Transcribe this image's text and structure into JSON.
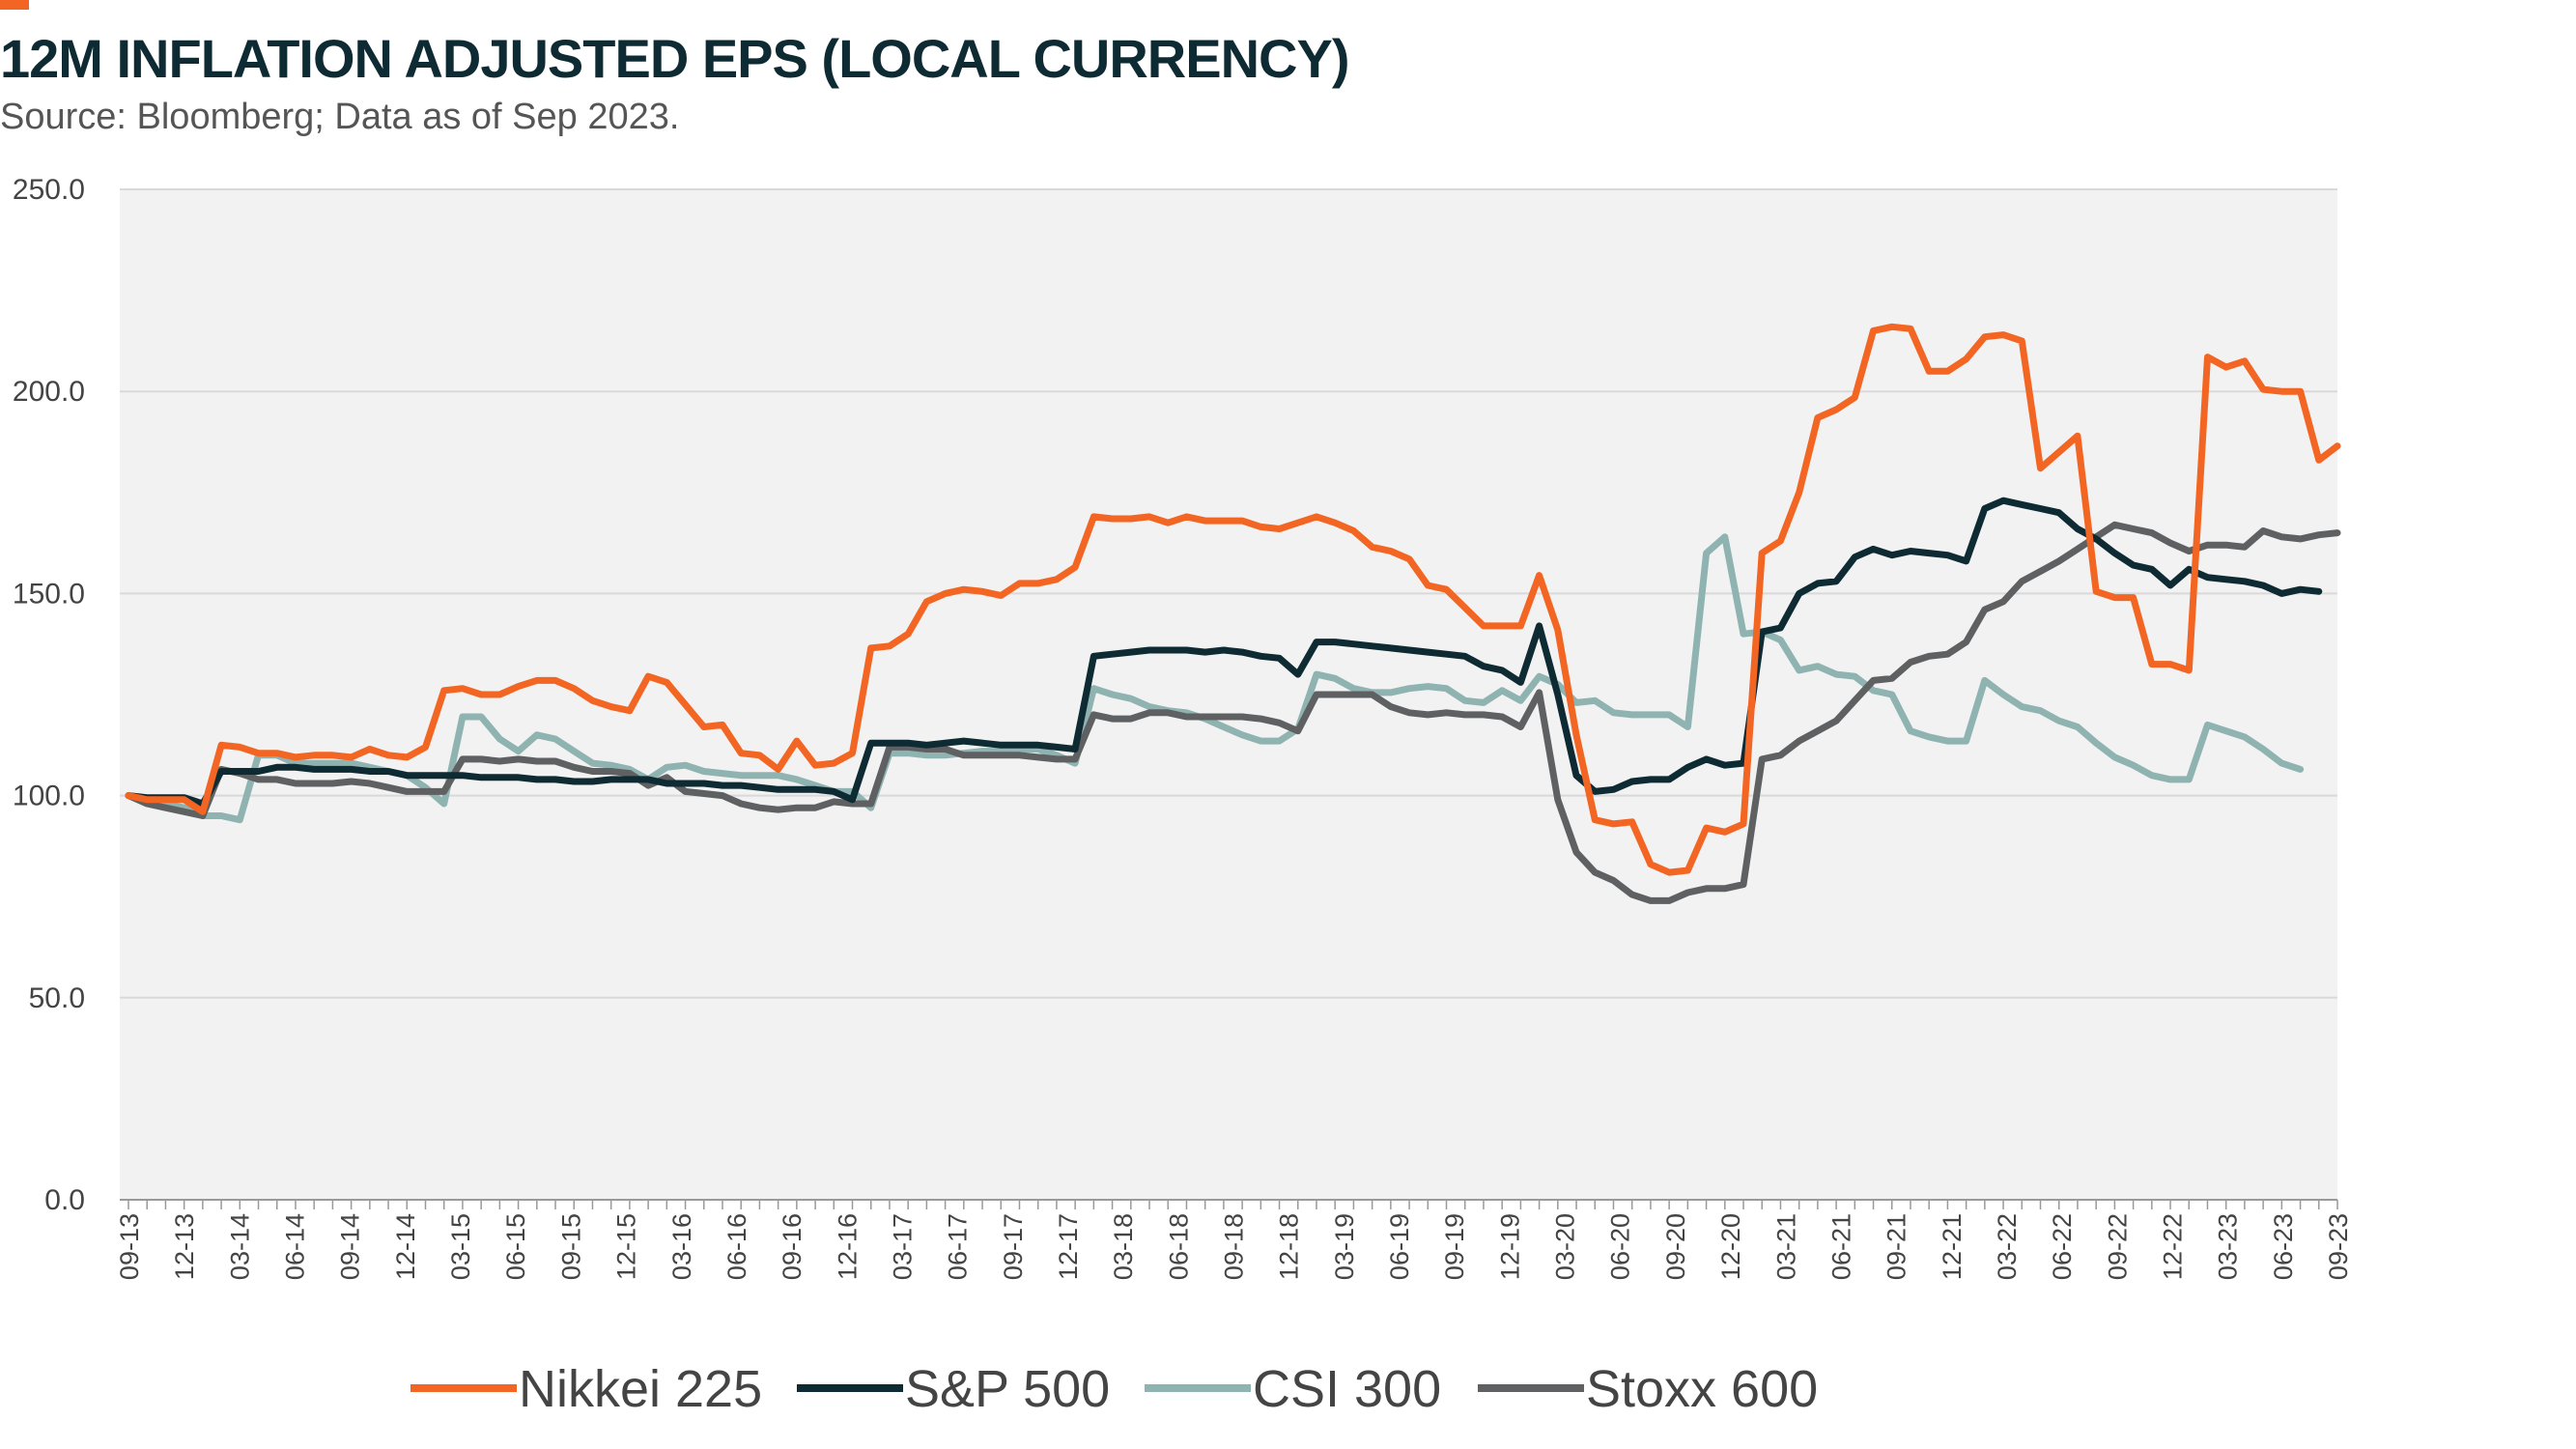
{
  "title": "12M INFLATION ADJUSTED EPS (LOCAL CURRENCY)",
  "subtitle": "Source: Bloomberg; Data as of Sep 2023.",
  "chart_data": {
    "type": "line",
    "title": "12M INFLATION ADJUSTED EPS (LOCAL CURRENCY)",
    "subtitle": "Source: Bloomberg; Data as of Sep 2023.",
    "xlabel": "",
    "ylabel": "",
    "ylim": [
      0,
      250
    ],
    "yticks": [
      "0.0",
      "50.0",
      "100.0",
      "150.0",
      "200.0",
      "250.0"
    ],
    "x_tick_labels": [
      "09-13",
      "12-13",
      "03-14",
      "06-14",
      "09-14",
      "12-14",
      "03-15",
      "06-15",
      "09-15",
      "12-15",
      "03-16",
      "06-16",
      "09-16",
      "12-16",
      "03-17",
      "06-17",
      "09-17",
      "12-17",
      "03-18",
      "06-18",
      "09-18",
      "12-18",
      "03-19",
      "06-19",
      "09-19",
      "12-19",
      "03-20",
      "06-20",
      "09-20",
      "12-20",
      "03-21",
      "06-21",
      "09-21",
      "12-21",
      "03-22",
      "06-22",
      "09-22",
      "12-22",
      "03-23",
      "06-23",
      "09-23"
    ],
    "grid": true,
    "legend_position": "bottom",
    "series": [
      {
        "name": "Nikkei 225",
        "color": "#f26522",
        "values": [
          100,
          99,
          99,
          99,
          96,
          112.5,
          112,
          110.5,
          110.5,
          109.5,
          110,
          110,
          109.5,
          111.5,
          110,
          109.5,
          112,
          126,
          126.5,
          125,
          125,
          127,
          128.5,
          128.5,
          126.5,
          123.5,
          122,
          121,
          129.5,
          128,
          122.5,
          117,
          117.5,
          110.5,
          110,
          106.5,
          113.5,
          107.5,
          108,
          110.5,
          136.5,
          137,
          140,
          148,
          150,
          151,
          150.5,
          149.5,
          152.5,
          152.5,
          153.5,
          156.5,
          169,
          168.5,
          168.5,
          169,
          167.5,
          169,
          168,
          168,
          168,
          166.5,
          166,
          167.5,
          169,
          167.5,
          165.5,
          161.5,
          160.5,
          158.5,
          152,
          151,
          146.5,
          142,
          142,
          142,
          154.5,
          141,
          115,
          94,
          93,
          93.5,
          83,
          81,
          81.5,
          92,
          91,
          93,
          160,
          163,
          175,
          193.5,
          195.5,
          198.5,
          215,
          216,
          215.5,
          205,
          205,
          208,
          213.5,
          214,
          212.5,
          181,
          185,
          189,
          150.5,
          149,
          149,
          132.5,
          132.5,
          131,
          208.5,
          206,
          207.5,
          200.5,
          200,
          200,
          183,
          186.5
        ]
      },
      {
        "name": "S&P 500",
        "color": "#0e2a33",
        "values": [
          100,
          99.5,
          99.5,
          99.5,
          98,
          106,
          106,
          106,
          107,
          107,
          106.5,
          106.5,
          106.5,
          106,
          106,
          105,
          105,
          105,
          105,
          104.5,
          104.5,
          104.5,
          104,
          104,
          103.5,
          103.5,
          104,
          104,
          104,
          103,
          103,
          103,
          102.5,
          102.5,
          102,
          101.5,
          101.5,
          101.5,
          101,
          99,
          113,
          113,
          113,
          112.5,
          113,
          113.5,
          113,
          112.5,
          112.5,
          112.5,
          112,
          111.5,
          134.5,
          135,
          135.5,
          136,
          136,
          136,
          135.5,
          136,
          135.5,
          134.5,
          134,
          130,
          138,
          138,
          137.5,
          137,
          136.5,
          136,
          135.5,
          135,
          134.5,
          132,
          131,
          128,
          142,
          125,
          105,
          101,
          101.5,
          103.5,
          104,
          104,
          107,
          109,
          107.5,
          108,
          140.5,
          141.5,
          150,
          152.5,
          153,
          159,
          161,
          159.5,
          160.5,
          160,
          159.5,
          158,
          171,
          173,
          172,
          171,
          170,
          166,
          163.5,
          160,
          157,
          156,
          152,
          156,
          154,
          153.5,
          153,
          152,
          150,
          151,
          150.5
        ]
      },
      {
        "name": "CSI 300",
        "color": "#8fb3b0",
        "values": [
          100,
          99,
          98,
          97,
          95,
          95,
          94,
          110,
          110,
          108,
          108,
          108,
          108,
          107,
          106,
          105,
          102,
          98,
          119.5,
          119.5,
          114,
          111,
          115,
          114,
          111,
          108,
          107.5,
          106.5,
          104,
          107,
          107.5,
          106,
          105.5,
          105,
          105,
          105,
          104,
          102.5,
          101,
          101,
          97,
          110.5,
          110.5,
          110,
          110,
          110.5,
          111,
          111,
          111.5,
          111.5,
          110,
          108,
          126.5,
          125,
          124,
          122,
          121,
          120.5,
          119,
          117,
          115,
          113.5,
          113.5,
          116.5,
          130,
          129,
          126.5,
          125.5,
          125.5,
          126.5,
          127,
          126.5,
          123.5,
          123,
          126,
          123.5,
          129.5,
          127.5,
          123,
          123.5,
          120.5,
          120,
          120,
          120,
          117,
          160,
          164,
          140,
          140.5,
          138.5,
          131,
          132,
          130,
          129.5,
          126,
          125,
          116,
          114.5,
          113.5,
          113.5,
          128.5,
          125,
          122,
          121,
          118.5,
          117,
          113,
          109.5,
          107.5,
          105,
          104,
          104,
          117.5,
          116,
          114.5,
          111.5,
          108,
          106.5
        ]
      },
      {
        "name": "Stoxx 600",
        "color": "#5f6062",
        "values": [
          100,
          98,
          97,
          96,
          95,
          106.5,
          105.5,
          104,
          104,
          103,
          103,
          103,
          103.5,
          103,
          102,
          101,
          101,
          101,
          109,
          109,
          108.5,
          109,
          108.5,
          108.5,
          107,
          106,
          106,
          105.5,
          102.5,
          104.5,
          101,
          100.5,
          100,
          98,
          97,
          96.5,
          97,
          97,
          98.5,
          98,
          98,
          112,
          112,
          111.5,
          111.5,
          110,
          110,
          110,
          110,
          109.5,
          109,
          109,
          120,
          119,
          119,
          120.5,
          120.5,
          119.5,
          119.5,
          119.5,
          119.5,
          119,
          118,
          116,
          125,
          125,
          125,
          125,
          122,
          120.5,
          120,
          120.5,
          120,
          120,
          119.5,
          117,
          125.5,
          99,
          86,
          81,
          79,
          75.5,
          74,
          74,
          76,
          77,
          77,
          78,
          109,
          110,
          113.5,
          116,
          118.5,
          123.5,
          128.5,
          129,
          133,
          134.5,
          135,
          138,
          146,
          148,
          153,
          155.5,
          158,
          161,
          164,
          167,
          166,
          165,
          162.5,
          160.5,
          162,
          162,
          161.5,
          165.5,
          164,
          163.5,
          164.5,
          165
        ]
      }
    ]
  }
}
